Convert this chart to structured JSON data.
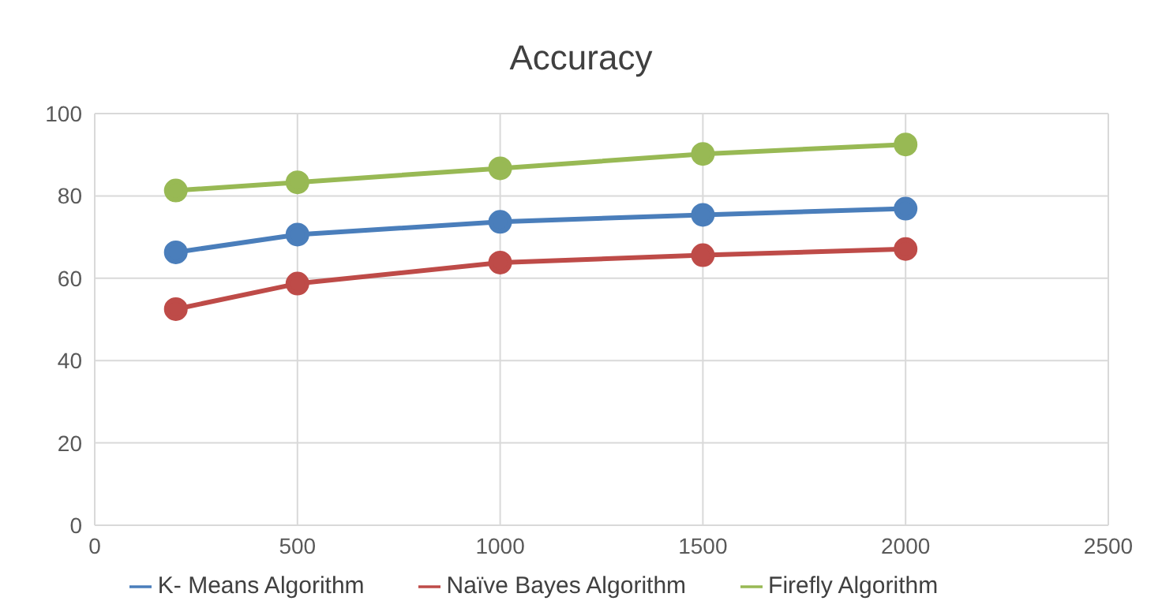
{
  "chart_data": {
    "type": "line",
    "title": "Accuracy",
    "x": [
      200,
      500,
      1000,
      1500,
      2000
    ],
    "series": [
      {
        "name": "K- Means Algorithm",
        "color": "#4a7ebb",
        "values": [
          66.3,
          70.6,
          73.7,
          75.4,
          76.9
        ]
      },
      {
        "name": "Naïve Bayes Algorithm",
        "color": "#be4b48",
        "values": [
          52.5,
          58.7,
          63.8,
          65.6,
          67.1
        ]
      },
      {
        "name": "Firefly Algorithm",
        "color": "#98b954",
        "values": [
          81.3,
          83.3,
          86.7,
          90.2,
          92.5
        ]
      }
    ],
    "xlim": [
      0,
      2500
    ],
    "xticks": [
      0,
      500,
      1000,
      1500,
      2000,
      2500
    ],
    "ylim": [
      0,
      100
    ],
    "yticks": [
      0,
      20,
      40,
      60,
      80,
      100
    ],
    "grid": true,
    "legend": "bottom",
    "marker": "circle",
    "line_style": "solid"
  }
}
